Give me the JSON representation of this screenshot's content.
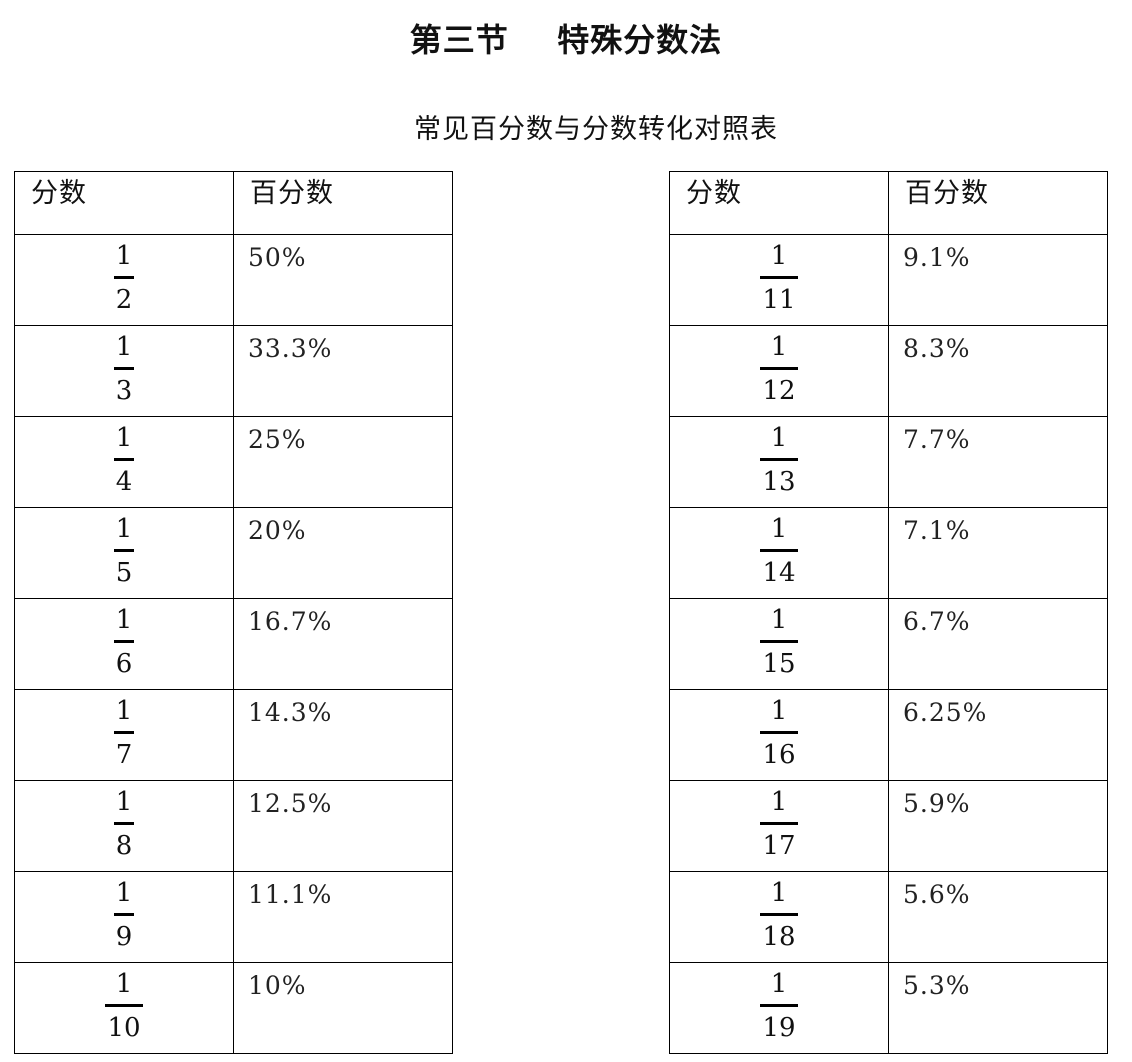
{
  "page_title": "第三节    特殊分数法",
  "subtitle": "常见百分数与分数转化对照表",
  "table_left": {
    "headers": [
      "分数",
      "百分数"
    ],
    "rows": [
      {
        "numerator": "1",
        "denominator": "2",
        "percent": "50%"
      },
      {
        "numerator": "1",
        "denominator": "3",
        "percent": "33.3%"
      },
      {
        "numerator": "1",
        "denominator": "4",
        "percent": "25%"
      },
      {
        "numerator": "1",
        "denominator": "5",
        "percent": "20%"
      },
      {
        "numerator": "1",
        "denominator": "6",
        "percent": "16.7%"
      },
      {
        "numerator": "1",
        "denominator": "7",
        "percent": "14.3%"
      },
      {
        "numerator": "1",
        "denominator": "8",
        "percent": "12.5%"
      },
      {
        "numerator": "1",
        "denominator": "9",
        "percent": "11.1%"
      },
      {
        "numerator": "1",
        "denominator": "10",
        "percent": "10%"
      }
    ]
  },
  "table_right": {
    "headers": [
      "分数",
      "百分数"
    ],
    "rows": [
      {
        "numerator": "1",
        "denominator": "11",
        "percent": "9.1%"
      },
      {
        "numerator": "1",
        "denominator": "12",
        "percent": "8.3%"
      },
      {
        "numerator": "1",
        "denominator": "13",
        "percent": "7.7%"
      },
      {
        "numerator": "1",
        "denominator": "14",
        "percent": "7.1%"
      },
      {
        "numerator": "1",
        "denominator": "15",
        "percent": "6.7%"
      },
      {
        "numerator": "1",
        "denominator": "16",
        "percent": "6.25%"
      },
      {
        "numerator": "1",
        "denominator": "17",
        "percent": "5.9%"
      },
      {
        "numerator": "1",
        "denominator": "18",
        "percent": "5.6%"
      },
      {
        "numerator": "1",
        "denominator": "19",
        "percent": "5.3%"
      }
    ]
  }
}
